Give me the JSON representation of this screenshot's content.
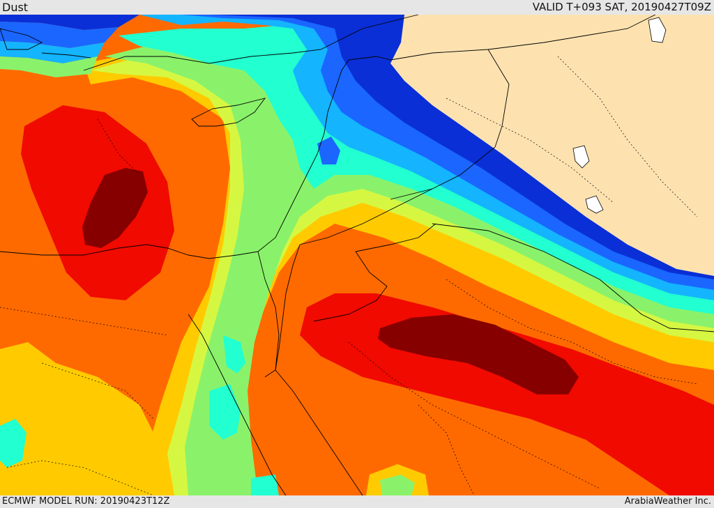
{
  "header": {
    "title": "Dust",
    "valid_time": "VALID T+093 SAT, 20190427T09Z"
  },
  "footer": {
    "model_run": "ECMWF MODEL RUN: 20190423T12Z",
    "credit": "ArabiaWeather Inc."
  },
  "colors": {
    "land_no_data": "#fde2b0",
    "navy": "#0a2fd6",
    "blue": "#1a66ff",
    "sky": "#14b4ff",
    "cyan": "#22ffd0",
    "green": "#8af26a",
    "yellow_green": "#d6f742",
    "yellow": "#ffcb00",
    "orange": "#ff6a00",
    "red": "#f00a00",
    "dark_red": "#870000",
    "borders": "#000000"
  }
}
